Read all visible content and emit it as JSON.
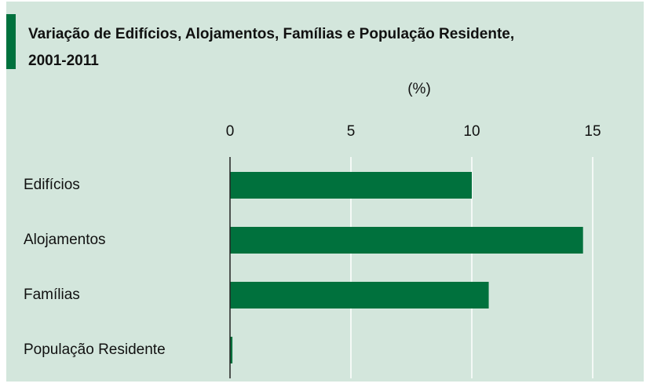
{
  "chart_data": {
    "type": "bar",
    "orientation": "horizontal",
    "title": "Variação de Edifícios, Alojamentos, Famílias e População Residente,",
    "subtitle": "2001-2011",
    "x_label": "(%)",
    "categories": [
      "Edifícios",
      "Alojamentos",
      "Famílias",
      "População Residente"
    ],
    "values": [
      10.0,
      14.6,
      10.7,
      0.1
    ],
    "color": "#00713d",
    "xlim": [
      0,
      15
    ],
    "xticks": [
      0,
      5,
      10,
      15
    ],
    "grid": true
  }
}
